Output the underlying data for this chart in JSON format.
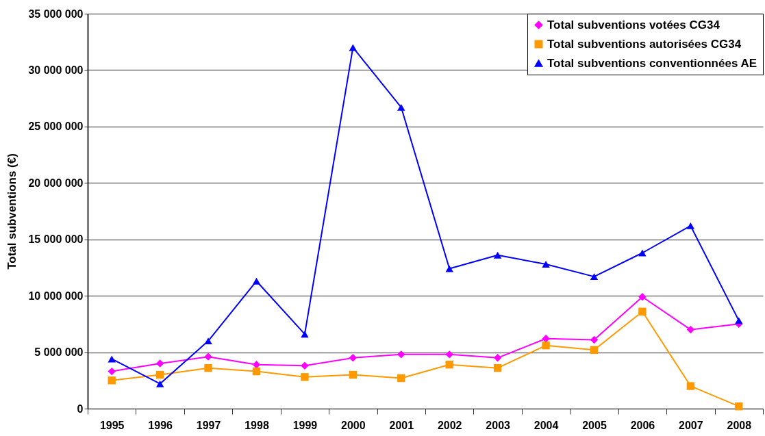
{
  "chart_data": {
    "type": "line",
    "ylabel": "Total subventions (€)",
    "categories": [
      "1995",
      "1996",
      "1997",
      "1998",
      "1999",
      "2000",
      "2001",
      "2002",
      "2003",
      "2004",
      "2005",
      "2006",
      "2007",
      "2008"
    ],
    "series": [
      {
        "name": "Total subventions votées CG34",
        "color": "#ff00ff",
        "marker": "diamond",
        "values": [
          3300000,
          4000000,
          4600000,
          3900000,
          3800000,
          4500000,
          4800000,
          4800000,
          4500000,
          6200000,
          6100000,
          9900000,
          7000000,
          7500000
        ]
      },
      {
        "name": "Total subventions autorisées CG34",
        "color": "#ff9900",
        "marker": "square",
        "values": [
          2500000,
          3000000,
          3600000,
          3300000,
          2800000,
          3000000,
          2700000,
          3900000,
          3600000,
          5600000,
          5200000,
          8600000,
          2000000,
          200000
        ]
      },
      {
        "name": "Total subventions conventionnées AE",
        "color": "#0000ff",
        "marker": "triangle",
        "values": [
          4400000,
          2200000,
          6000000,
          11300000,
          6600000,
          32000000,
          26700000,
          12400000,
          13600000,
          12800000,
          11700000,
          13800000,
          16200000,
          7800000
        ]
      }
    ],
    "ylim": [
      0,
      35000000
    ],
    "yticks": [
      0,
      {
        "value": 5000000,
        "label": "5 000 000"
      },
      {
        "value": 10000000,
        "label": "10 000 000"
      },
      {
        "value": 15000000,
        "label": "15 000 000"
      },
      {
        "value": 20000000,
        "label": "20 000 000"
      },
      {
        "value": 25000000,
        "label": "25 000 000"
      },
      {
        "value": 30000000,
        "label": "30 000 000"
      },
      {
        "value": 35000000,
        "label": "35 000 000"
      }
    ],
    "grid": "y",
    "legend": "top right",
    "line_style": "solid"
  }
}
